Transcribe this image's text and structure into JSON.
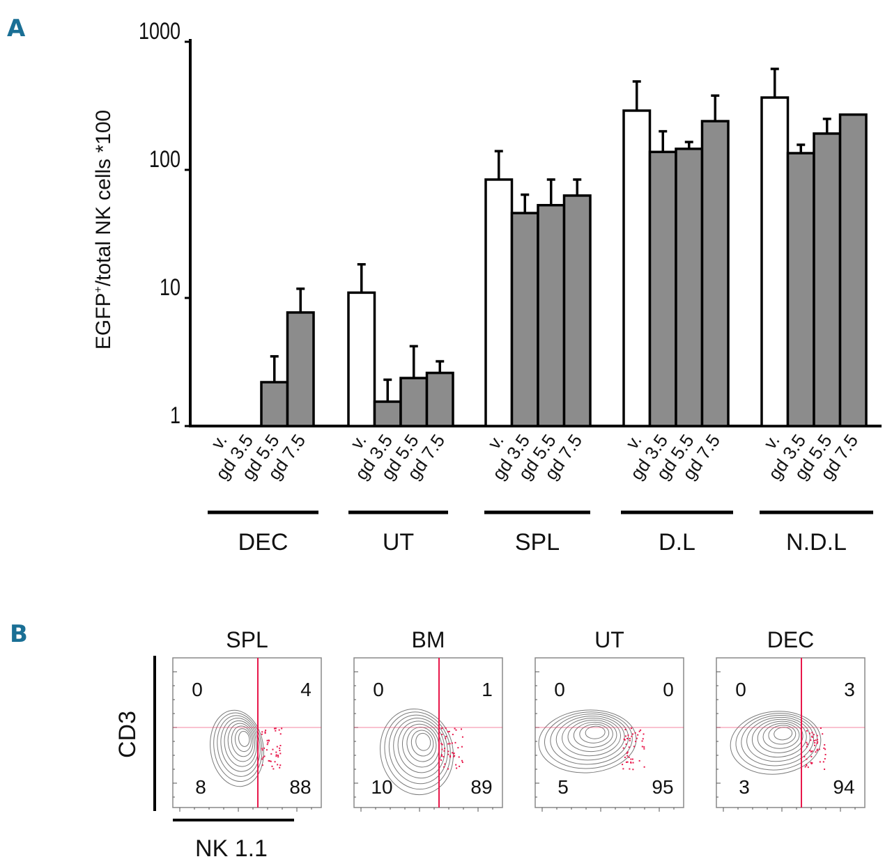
{
  "chart_data": [
    {
      "panel": "A",
      "type": "bar",
      "yscale": "log",
      "ylabel": "EGFP+/total NK cells *100",
      "ylabel_main": "EGFP",
      "ylabel_sup": "+",
      "ylabel_rest": "/total NK cells *100",
      "ylim": [
        1,
        1000
      ],
      "yticks": [
        "1",
        "10",
        "100",
        "1000"
      ],
      "yticks_values": [
        1,
        10,
        100,
        1000
      ],
      "categories": [
        "v.",
        "gd 3.5",
        "gd 5.5",
        "gd 7.5"
      ],
      "groups": [
        {
          "name": "DEC",
          "values": [
            null,
            null,
            2.2,
            7.7
          ],
          "errors": [
            null,
            null,
            3.5,
            11.8
          ]
        },
        {
          "name": "UT",
          "values": [
            11,
            1.55,
            2.37,
            2.6
          ],
          "errors": [
            18.3,
            2.3,
            4.2,
            3.2
          ]
        },
        {
          "name": "SPL",
          "values": [
            84,
            46,
            53,
            63
          ],
          "errors": [
            140,
            64,
            84,
            84
          ]
        },
        {
          "name": "D.L",
          "values": [
            290,
            138,
            146,
            240
          ],
          "errors": [
            490,
            200,
            165,
            380
          ]
        },
        {
          "name": "N.D.L",
          "values": [
            367,
            135,
            192,
            270
          ],
          "errors": [
            614,
            157,
            250,
            null
          ]
        }
      ],
      "colors": {
        "v.": "#ffffff",
        "gd": "#8c8c8c",
        "stroke": "#000000"
      }
    },
    {
      "panel": "B",
      "type": "scatter",
      "xlabel": "NK 1.1",
      "ylabel": "CD3",
      "plots": [
        {
          "title": "SPL",
          "quadrants": {
            "top_left": "0",
            "top_right": "4",
            "bottom_left": "8",
            "bottom_right": "88"
          }
        },
        {
          "title": "BM",
          "quadrants": {
            "top_left": "0",
            "top_right": "1",
            "bottom_left": "10",
            "bottom_right": "89"
          }
        },
        {
          "title": "UT",
          "quadrants": {
            "top_left": "0",
            "top_right": "0",
            "bottom_left": "5",
            "bottom_right": "95"
          }
        },
        {
          "title": "DEC",
          "quadrants": {
            "top_left": "0",
            "top_right": "3",
            "bottom_left": "3",
            "bottom_right": "94"
          }
        }
      ],
      "colors": {
        "gate": "#e8174a",
        "contour": "#7a7a7a"
      }
    }
  ],
  "panel_labels": {
    "a": "A",
    "b": "B"
  }
}
